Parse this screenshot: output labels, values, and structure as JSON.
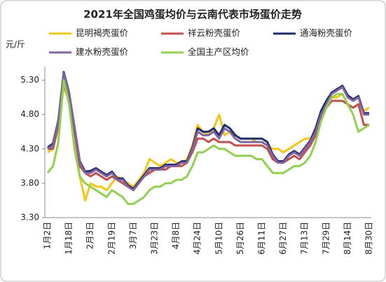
{
  "chart_data": {
    "type": "line",
    "title": "2021年全国鸡蛋均价与云南代表市场蛋价走势",
    "y_label": "元/斤",
    "categories": [
      "1月2日",
      null,
      null,
      null,
      "1月18日",
      null,
      null,
      null,
      "2月3日",
      null,
      null,
      null,
      "2月19日",
      null,
      null,
      null,
      "3月7日",
      null,
      null,
      null,
      "3月23日",
      null,
      null,
      null,
      "4月8日",
      null,
      null,
      null,
      "4月24日",
      null,
      null,
      null,
      "5月10日",
      null,
      null,
      null,
      "5月26日",
      null,
      null,
      null,
      "6月11日",
      null,
      null,
      null,
      "6月27日",
      null,
      null,
      null,
      "7月13日",
      null,
      null,
      null,
      "7月29日",
      null,
      null,
      null,
      "8月14日",
      null,
      null,
      null,
      "8月30日"
    ],
    "series": [
      {
        "name": "昆明褐壳蛋价",
        "color": "#f5c518",
        "values": [
          4.25,
          4.3,
          4.6,
          5.2,
          5.0,
          4.5,
          3.9,
          3.55,
          3.8,
          3.75,
          3.75,
          3.7,
          3.8,
          3.9,
          3.85,
          3.8,
          3.75,
          3.85,
          3.95,
          4.15,
          4.1,
          4.05,
          4.1,
          4.15,
          4.1,
          4.1,
          4.15,
          4.35,
          4.65,
          4.55,
          4.5,
          4.6,
          4.8,
          4.5,
          4.55,
          4.5,
          4.45,
          4.45,
          4.45,
          4.4,
          4.4,
          4.35,
          4.3,
          4.3,
          4.25,
          4.3,
          4.35,
          4.4,
          4.45,
          4.45,
          4.55,
          4.75,
          4.95,
          5.05,
          5.05,
          5.1,
          4.95,
          4.9,
          4.95,
          4.85,
          4.9
        ]
      },
      {
        "name": "祥云粉壳蛋价",
        "color": "#c0504d",
        "values": [
          4.3,
          4.3,
          4.65,
          5.25,
          5.0,
          4.55,
          4.05,
          3.95,
          3.9,
          3.95,
          3.9,
          3.85,
          3.9,
          3.85,
          3.8,
          3.75,
          3.7,
          3.8,
          3.9,
          3.95,
          4.0,
          4.0,
          4.0,
          4.05,
          4.05,
          4.05,
          4.1,
          4.25,
          4.45,
          4.45,
          4.4,
          4.45,
          4.4,
          4.4,
          4.4,
          4.35,
          4.35,
          4.35,
          4.35,
          4.35,
          4.35,
          4.3,
          4.15,
          4.1,
          4.1,
          4.15,
          4.2,
          4.15,
          4.25,
          4.35,
          4.5,
          4.75,
          4.9,
          5.0,
          5.0,
          5.0,
          4.95,
          4.9,
          4.95,
          4.65,
          4.65
        ]
      },
      {
        "name": "通海粉壳蛋价",
        "color": "#1f2a6b",
        "values": [
          4.32,
          4.38,
          4.72,
          5.42,
          5.12,
          4.62,
          4.12,
          3.97,
          3.98,
          4.02,
          3.97,
          3.92,
          3.97,
          3.87,
          3.87,
          3.77,
          3.72,
          3.82,
          3.92,
          4.02,
          4.02,
          4.02,
          4.07,
          4.07,
          4.07,
          4.12,
          4.12,
          4.32,
          4.6,
          4.55,
          4.55,
          4.6,
          4.5,
          4.65,
          4.6,
          4.5,
          4.45,
          4.45,
          4.45,
          4.45,
          4.45,
          4.4,
          4.22,
          4.12,
          4.12,
          4.22,
          4.27,
          4.22,
          4.32,
          4.42,
          4.6,
          4.85,
          5.0,
          5.12,
          5.17,
          5.22,
          5.08,
          5.02,
          5.07,
          4.82,
          4.82
        ]
      },
      {
        "name": "建水粉壳蛋价",
        "color": "#8064a2",
        "values": [
          4.3,
          4.35,
          4.7,
          5.4,
          5.1,
          4.6,
          4.1,
          3.95,
          3.95,
          4.0,
          3.95,
          3.9,
          3.95,
          3.85,
          3.85,
          3.75,
          3.7,
          3.8,
          3.9,
          4.0,
          4.0,
          4.0,
          4.05,
          4.05,
          4.05,
          4.1,
          4.1,
          4.3,
          4.55,
          4.5,
          4.5,
          4.55,
          4.45,
          4.6,
          4.55,
          4.45,
          4.4,
          4.4,
          4.4,
          4.4,
          4.4,
          4.35,
          4.2,
          4.1,
          4.1,
          4.2,
          4.25,
          4.2,
          4.3,
          4.4,
          4.55,
          4.8,
          4.95,
          5.1,
          5.15,
          5.2,
          5.05,
          5.0,
          5.05,
          4.8,
          4.8
        ]
      },
      {
        "name": "全国主产区均价",
        "color": "#92d050",
        "values": [
          3.95,
          4.05,
          4.4,
          5.3,
          4.95,
          4.3,
          3.9,
          3.8,
          3.75,
          3.7,
          3.65,
          3.6,
          3.7,
          3.65,
          3.6,
          3.5,
          3.5,
          3.55,
          3.6,
          3.7,
          3.75,
          3.75,
          3.8,
          3.8,
          3.85,
          3.85,
          3.9,
          4.05,
          4.25,
          4.25,
          4.3,
          4.35,
          4.3,
          4.3,
          4.25,
          4.2,
          4.2,
          4.2,
          4.2,
          4.15,
          4.15,
          4.05,
          3.95,
          3.95,
          3.95,
          4.0,
          4.05,
          4.05,
          4.1,
          4.2,
          4.4,
          4.7,
          4.9,
          5.05,
          5.1,
          5.1,
          4.95,
          4.8,
          4.55,
          4.6,
          4.65
        ]
      }
    ],
    "ylim": [
      3.3,
      5.5
    ],
    "yticks": [
      {
        "value": 3.3,
        "label": "3.30"
      },
      {
        "value": 3.8,
        "label": "3.80"
      },
      {
        "value": 4.3,
        "label": "4.30"
      },
      {
        "value": 4.8,
        "label": "4.80"
      },
      {
        "value": 5.3,
        "label": "5.30"
      }
    ],
    "legend": "top"
  }
}
